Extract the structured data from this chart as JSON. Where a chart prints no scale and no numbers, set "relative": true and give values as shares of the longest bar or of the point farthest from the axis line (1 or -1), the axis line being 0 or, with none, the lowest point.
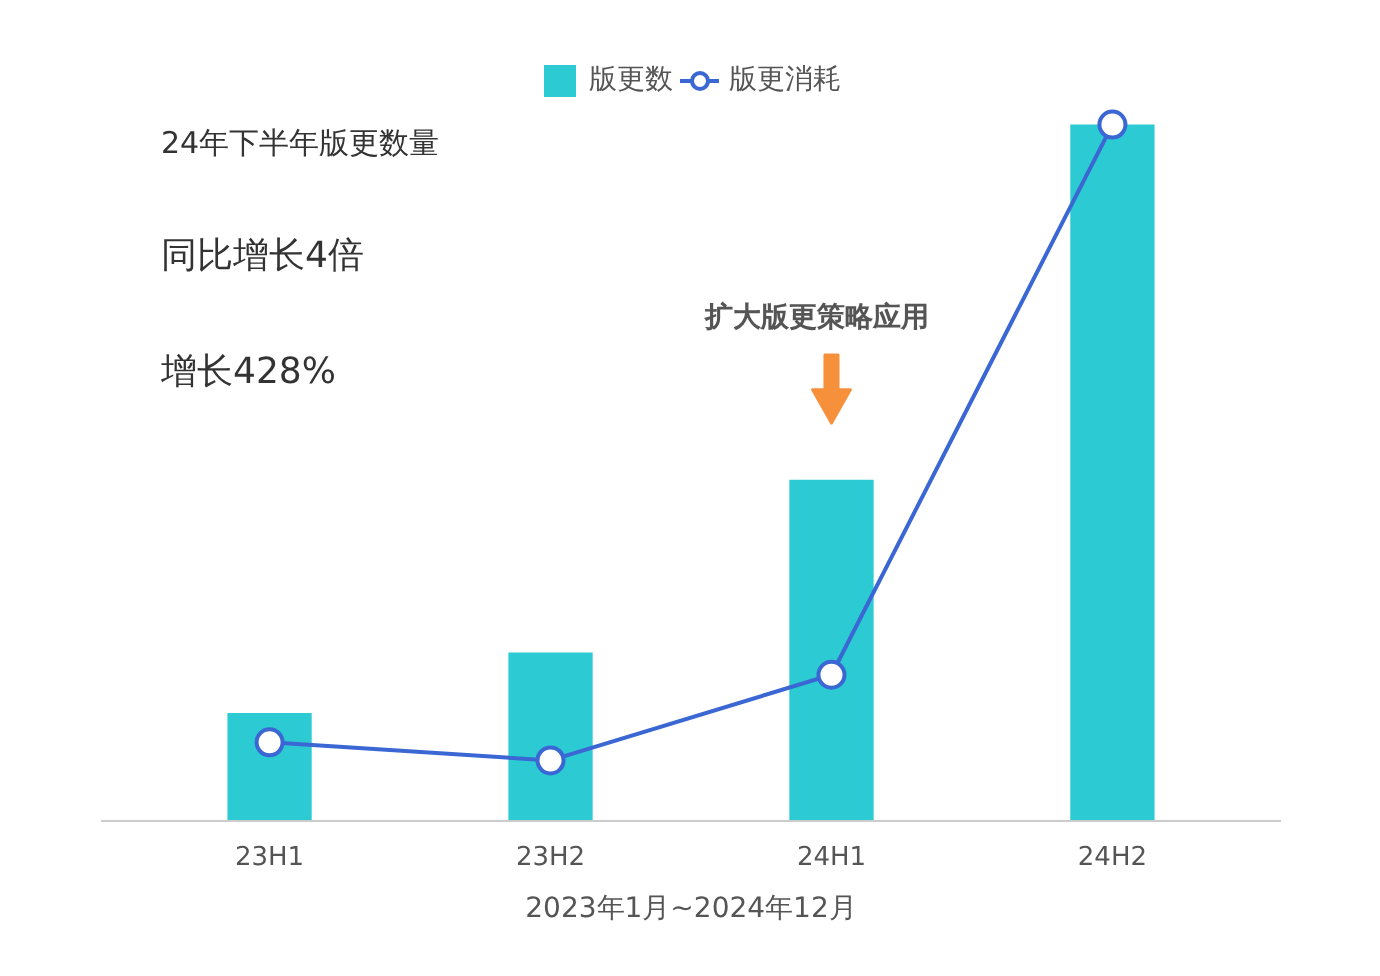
{
  "chart_data": {
    "type": "bar",
    "categories": [
      "23H1",
      "23H2",
      "24H1",
      "24H2"
    ],
    "relative": true,
    "legend": "top",
    "series": [
      {
        "name": "版更数",
        "color": "#2ccbd3",
        "values": [
          0.155,
          0.242,
          0.49,
          1
        ]
      },
      {
        "name": "版更消耗",
        "type": "line",
        "color": "#3a67d4",
        "marker": "circle",
        "values": [
          0.113,
          0.087,
          0.21,
          1
        ]
      }
    ],
    "annotations": [
      "24年下半年版更数量",
      "同比增长4倍",
      "增长428%",
      "扩大版更策略应用",
      "2023年1月~2024年12月"
    ]
  }
}
